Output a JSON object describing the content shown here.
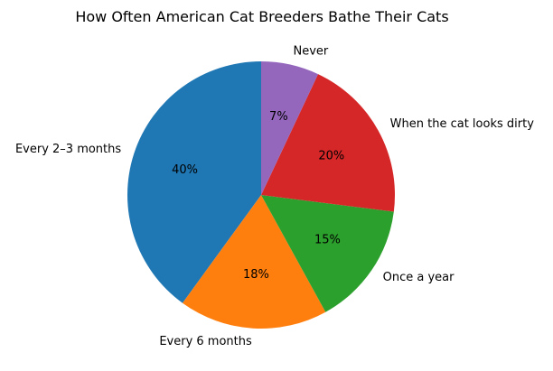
{
  "chart_data": {
    "type": "pie",
    "title": "How Often American Cat Breeders Bathe Their Cats",
    "start_angle_deg": 90,
    "direction": "counterclockwise",
    "legend": "none",
    "slices": [
      {
        "label": "Every 2–3 months",
        "value": 40,
        "pct_label": "40%",
        "color": "#1f77b4"
      },
      {
        "label": "Every 6 months",
        "value": 18,
        "pct_label": "18%",
        "color": "#ff7f0e"
      },
      {
        "label": "Once a year",
        "value": 15,
        "pct_label": "15%",
        "color": "#2ca02c"
      },
      {
        "label": "When the cat looks dirty",
        "value": 20,
        "pct_label": "20%",
        "color": "#d62728"
      },
      {
        "label": "Never",
        "value": 7,
        "pct_label": "7%",
        "color": "#9467bd"
      }
    ]
  }
}
